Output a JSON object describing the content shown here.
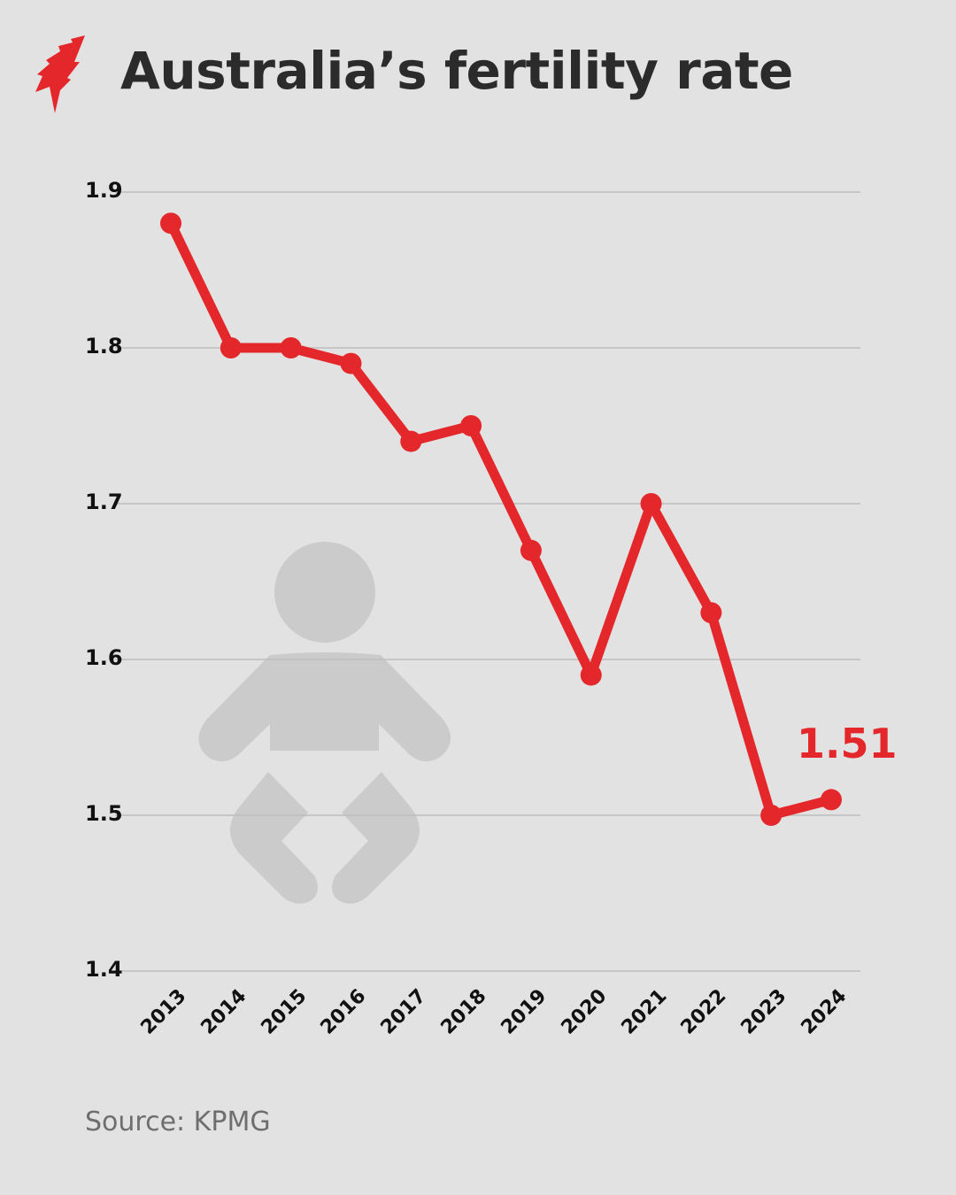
{
  "header": {
    "logo": "sbs-logo-icon",
    "title": "Australia’s fertility rate"
  },
  "colors": {
    "background": "#e2e2e2",
    "line": "#e4272b",
    "grid": "#bdbdbd",
    "icon": "#cbcbcb",
    "title": "#2b2b2b",
    "source": "#6e6e6e"
  },
  "decorative_icon": "baby-icon",
  "annotation": {
    "label": "1.51",
    "year": "2024"
  },
  "yticks": [
    "1.9",
    "1.8",
    "1.7",
    "1.6",
    "1.5",
    "1.4"
  ],
  "xticks": [
    "2013",
    "2014",
    "2015",
    "2016",
    "2017",
    "2018",
    "2019",
    "2020",
    "2021",
    "2022",
    "2023",
    "2024"
  ],
  "footer": {
    "source": "Source: KPMG"
  },
  "chart_data": {
    "type": "line",
    "title": "Australia’s fertility rate",
    "xlabel": "",
    "ylabel": "",
    "categories": [
      "2013",
      "2014",
      "2015",
      "2016",
      "2017",
      "2018",
      "2019",
      "2020",
      "2021",
      "2022",
      "2023",
      "2024"
    ],
    "series": [
      {
        "name": "Fertility rate",
        "values": [
          1.88,
          1.8,
          1.8,
          1.79,
          1.74,
          1.75,
          1.67,
          1.59,
          1.7,
          1.63,
          1.5,
          1.51
        ]
      }
    ],
    "ylim": [
      1.4,
      1.9
    ],
    "yticks": [
      1.4,
      1.5,
      1.6,
      1.7,
      1.8,
      1.9
    ],
    "grid": true,
    "legend": "none",
    "annotations": [
      {
        "x": "2024",
        "y": 1.51,
        "text": "1.51"
      }
    ],
    "source": "Source: KPMG"
  }
}
